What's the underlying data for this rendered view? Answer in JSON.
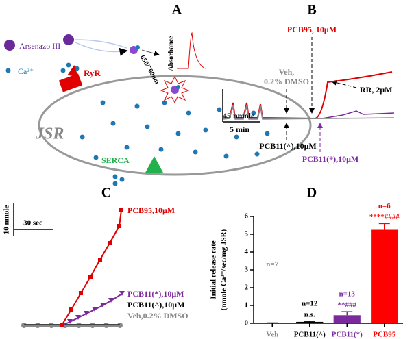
{
  "panel_a": {
    "label": "A",
    "arsenazo": "Arsenazo III",
    "calcium": "Ca²⁺",
    "ryr": "RyR",
    "jsr": "JSR",
    "serca": "SERCA",
    "wavelength": "650/700nm",
    "absorbance": "Absorbance"
  },
  "panel_b": {
    "label": "B",
    "pcb95": "PCB95, 10μM",
    "veh": [
      "Veh,",
      "0.2% DMSO"
    ],
    "rr": "RR, 2μM",
    "scale_y": "45 nmole",
    "scale_x": "5 min",
    "pcb11_hat": "PCB11(^),10μM",
    "pcb11_star": "PCB11(*),10μM"
  },
  "panel_c": {
    "label": "C",
    "scale_y": "10 nmole",
    "scale_x": "30 sec",
    "legend": [
      "PCB95,10μM",
      "PCB11(*),10μM",
      "PCB11(^),10μM",
      "Veh,0.2% DMSO"
    ]
  },
  "chart_data": {
    "type": "bar",
    "title": "D",
    "ylabel": [
      "Initial release rate",
      "(nmole Ca²⁺/sec/mg JSR)"
    ],
    "categories": [
      "Veh",
      "PCB11(^)",
      "PCB11(*)",
      "PCB95"
    ],
    "values": [
      0.02,
      0.08,
      0.45,
      5.25
    ],
    "errors": [
      0.01,
      0.03,
      0.2,
      0.35
    ],
    "colors": [
      "#888888",
      "#000000",
      "#7b2a9e",
      "#ff0000"
    ],
    "n_labels": [
      "n=7",
      "n=12",
      "n=13",
      "n=6"
    ],
    "annotations": [
      null,
      "n.s.",
      "**###",
      "****####"
    ],
    "ylim": [
      0,
      6
    ],
    "yticks": [
      0,
      1,
      2,
      3,
      4,
      5,
      6
    ]
  }
}
